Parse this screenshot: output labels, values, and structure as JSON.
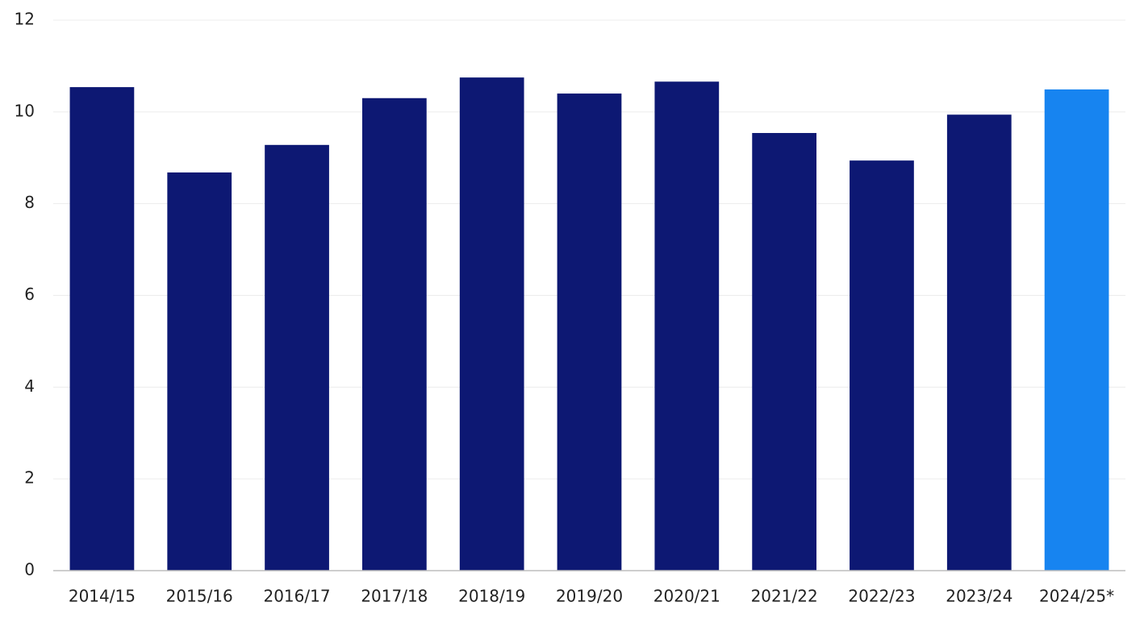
{
  "chart_data": {
    "type": "bar",
    "categories": [
      "2014/15",
      "2015/16",
      "2016/17",
      "2017/18",
      "2018/19",
      "2019/20",
      "2020/21",
      "2021/22",
      "2022/23",
      "2023/24",
      "2024/25*"
    ],
    "values": [
      10.54,
      8.68,
      9.28,
      10.3,
      10.75,
      10.4,
      10.66,
      9.54,
      8.94,
      9.94,
      10.49
    ],
    "colors": [
      "#0d1873",
      "#0d1873",
      "#0d1873",
      "#0d1873",
      "#0d1873",
      "#0d1873",
      "#0d1873",
      "#0d1873",
      "#0d1873",
      "#0d1873",
      "#1784f0"
    ],
    "ylim": [
      0,
      12
    ],
    "yticks": [
      0,
      2,
      4,
      6,
      8,
      10,
      12
    ],
    "grid": true
  }
}
